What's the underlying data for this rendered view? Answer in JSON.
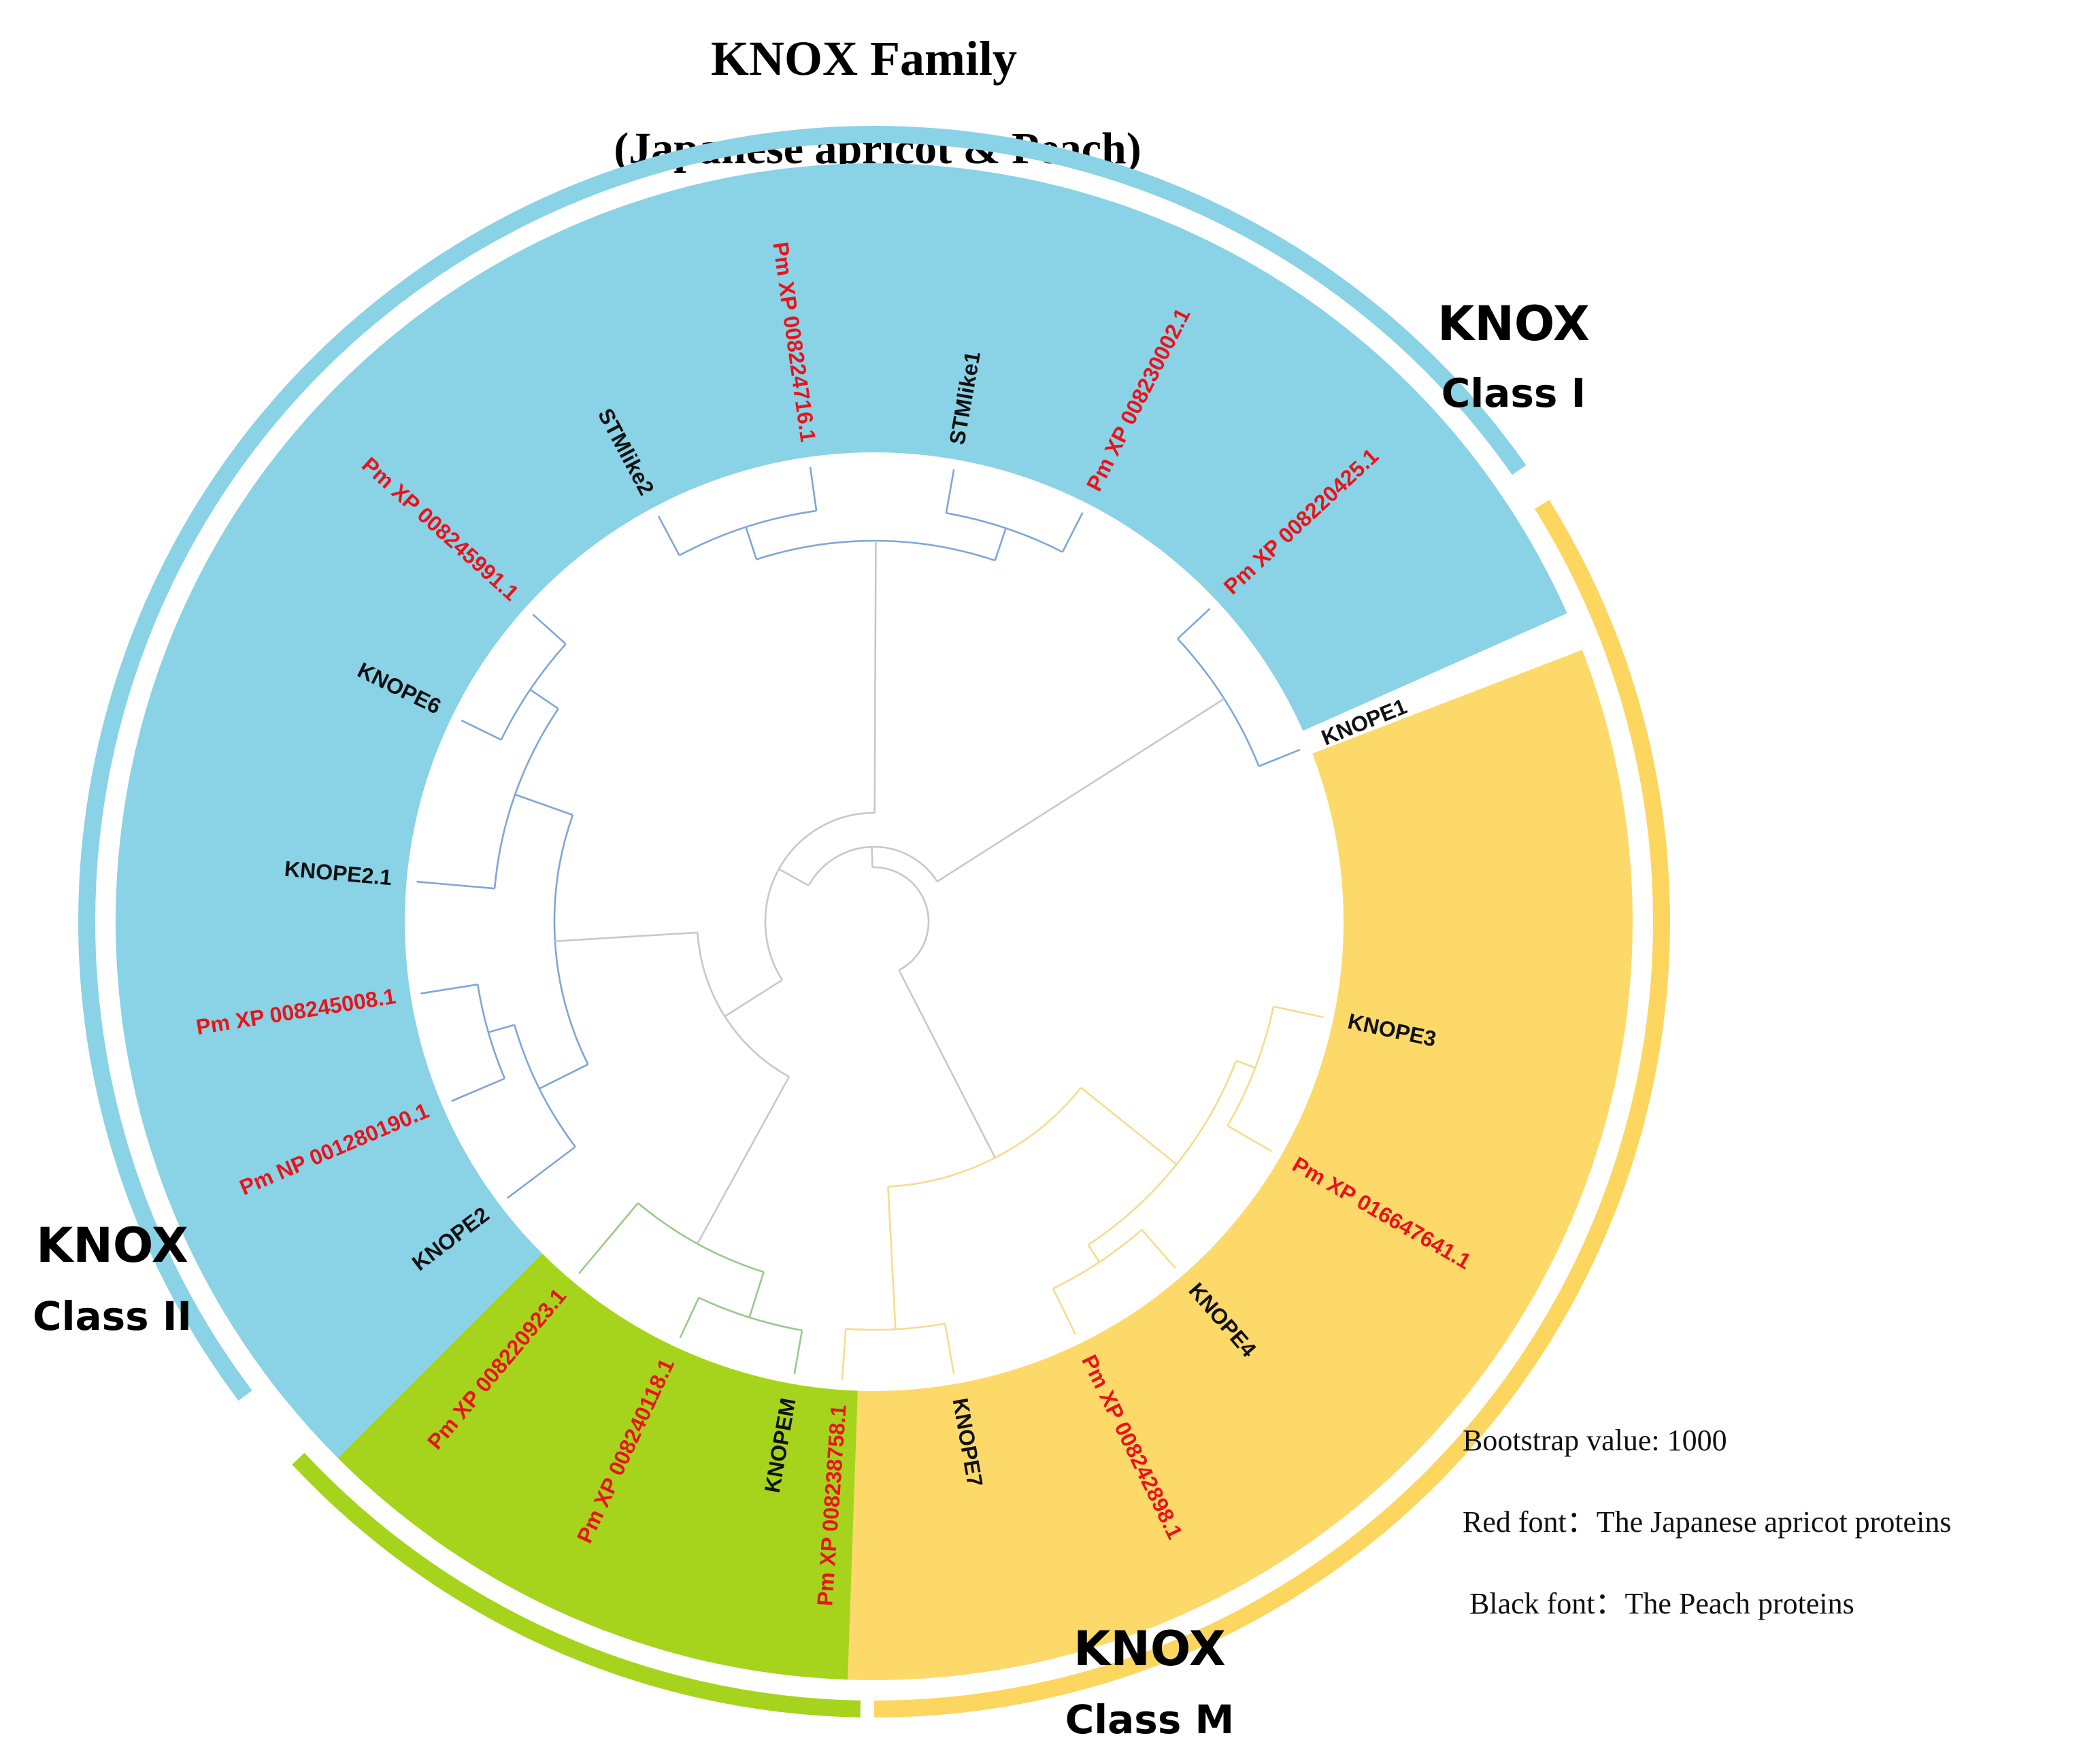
{
  "title": "KNOX Family",
  "subtitle": "(Japanese apricot & Peach)",
  "colors": {
    "class_i_band": "#8AD2E6",
    "class_i_ring": "#8AD2E6",
    "class_i_text": "#5BC3E0",
    "class_i_branch": "#7FA6D6",
    "class_ii_band": "#FDD96A",
    "class_ii_ring": "#FDD660",
    "class_ii_text": "#F5B800",
    "class_ii_branch": "#F5DC8C",
    "class_m_band": "#A6D41C",
    "class_m_ring": "#A6D41C",
    "class_m_text": "#96C11F",
    "class_m_branch": "#98C98A",
    "root_branch": "#C8C8C8",
    "japanese_apricot_label": "#E8141B",
    "peach_label": "#111111"
  },
  "classes": [
    {
      "id": "class_i",
      "name": "KNOX",
      "sub": "Class I"
    },
    {
      "id": "class_ii",
      "name": "KNOX",
      "sub": "Class II"
    },
    {
      "id": "class_m",
      "name": "KNOX",
      "sub": "Class M"
    }
  ],
  "leaves": [
    {
      "label": "KNOPEM",
      "species": "peach",
      "class": "class_m"
    },
    {
      "label": "Pm XP 008240118.1",
      "species": "japanese_apricot",
      "class": "class_m"
    },
    {
      "label": "Pm XP 008220923.1",
      "species": "japanese_apricot",
      "class": "class_m"
    },
    {
      "label": "KNOPE2",
      "species": "peach",
      "class": "class_i"
    },
    {
      "label": "Pm NP 001280190.1",
      "species": "japanese_apricot",
      "class": "class_i"
    },
    {
      "label": "Pm XP 008245008.1",
      "species": "japanese_apricot",
      "class": "class_i"
    },
    {
      "label": "KNOPE2.1",
      "species": "peach",
      "class": "class_i"
    },
    {
      "label": "KNOPE6",
      "species": "peach",
      "class": "class_i"
    },
    {
      "label": "Pm XP 008245991.1",
      "species": "japanese_apricot",
      "class": "class_i"
    },
    {
      "label": "STMlike2",
      "species": "peach",
      "class": "class_i"
    },
    {
      "label": "Pm XP 008224716.1",
      "species": "japanese_apricot",
      "class": "class_i"
    },
    {
      "label": "STMlike1",
      "species": "peach",
      "class": "class_i"
    },
    {
      "label": "Pm XP 008230002.1",
      "species": "japanese_apricot",
      "class": "class_i"
    },
    {
      "label": "Pm XP 008220425.1",
      "species": "japanese_apricot",
      "class": "class_i"
    },
    {
      "label": "KNOPE1",
      "species": "peach",
      "class": "class_i"
    },
    {
      "label": "KNOPE3",
      "species": "peach",
      "class": "class_ii"
    },
    {
      "label": "Pm XP 016647641.1",
      "species": "japanese_apricot",
      "class": "class_ii"
    },
    {
      "label": "KNOPE4",
      "species": "peach",
      "class": "class_ii"
    },
    {
      "label": "Pm XP 008242898.1",
      "species": "japanese_apricot",
      "class": "class_ii"
    },
    {
      "label": "KNOPE7",
      "species": "peach",
      "class": "class_ii"
    },
    {
      "label": "Pm XP 008238758.1",
      "species": "japanese_apricot",
      "class": "class_ii"
    }
  ],
  "legend": [
    "Bootstrap value: 1000",
    "Red font：The Japanese apricot proteins",
    "Black font：The Peach proteins"
  ]
}
